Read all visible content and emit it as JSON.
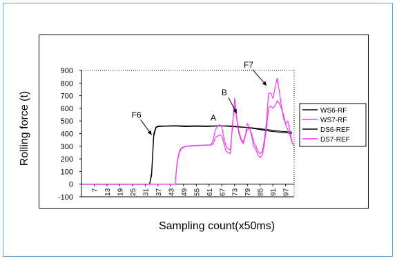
{
  "chart_data": {
    "type": "line",
    "title": "",
    "xlabel": "Sampling count(x50ms)",
    "ylabel": "Rolling force (t)",
    "ylim": [
      -100,
      900
    ],
    "xlim": [
      1,
      101
    ],
    "yticks": [
      -100,
      0,
      100,
      200,
      300,
      400,
      500,
      600,
      700,
      800,
      900
    ],
    "xticks": [
      7,
      13,
      19,
      25,
      31,
      37,
      43,
      49,
      55,
      61,
      67,
      73,
      79,
      85,
      91,
      97
    ],
    "legend_position": "right",
    "series": [
      {
        "name": "WS6-RF",
        "color": "#000000",
        "x": [
          1,
          30,
          33,
          34,
          35,
          36,
          37,
          40,
          45,
          50,
          55,
          60,
          65,
          70,
          75,
          80,
          85,
          90,
          95,
          100
        ],
        "y": [
          0,
          0,
          0,
          90,
          400,
          450,
          460,
          460,
          463,
          460,
          462,
          460,
          462,
          458,
          452,
          448,
          438,
          428,
          418,
          412
        ]
      },
      {
        "name": "WS7-RF",
        "color": "#ff33ff",
        "x": [
          1,
          45,
          46,
          47,
          48,
          49,
          50,
          53,
          57,
          60,
          62,
          63,
          64,
          65,
          66,
          67,
          68,
          69,
          70,
          71,
          72,
          73,
          74,
          75,
          76,
          77,
          78,
          79,
          80,
          81,
          82,
          83,
          84,
          85,
          86,
          87,
          88,
          89,
          90,
          91,
          92,
          93,
          94,
          95,
          96,
          97,
          98,
          99,
          100,
          101
        ],
        "y": [
          0,
          0,
          180,
          260,
          285,
          295,
          300,
          305,
          308,
          310,
          310,
          320,
          370,
          380,
          390,
          380,
          320,
          260,
          250,
          240,
          480,
          620,
          520,
          420,
          360,
          330,
          390,
          430,
          440,
          400,
          330,
          300,
          260,
          240,
          260,
          350,
          500,
          720,
          720,
          680,
          760,
          840,
          740,
          620,
          520,
          480,
          500,
          430,
          330,
          300
        ]
      },
      {
        "name": "DS6-REF",
        "color": "#000000",
        "x": [
          1,
          30,
          33,
          34,
          35,
          36,
          37,
          40,
          45,
          50,
          55,
          60,
          65,
          70,
          75,
          80,
          85,
          90,
          95,
          100
        ],
        "y": [
          0,
          0,
          0,
          70,
          380,
          445,
          455,
          458,
          460,
          455,
          458,
          456,
          460,
          462,
          455,
          445,
          432,
          418,
          410,
          402
        ]
      },
      {
        "name": "DS7-REF",
        "color": "#ff33ff",
        "x": [
          1,
          45,
          46,
          47,
          48,
          49,
          50,
          53,
          57,
          60,
          62,
          63,
          64,
          65,
          66,
          67,
          68,
          69,
          70,
          71,
          72,
          73,
          74,
          75,
          76,
          77,
          78,
          79,
          80,
          81,
          82,
          83,
          84,
          85,
          86,
          87,
          88,
          89,
          90,
          91,
          92,
          93,
          94,
          95,
          96,
          97,
          98,
          99,
          100,
          101
        ],
        "y": [
          0,
          0,
          170,
          250,
          280,
          292,
          298,
          302,
          306,
          308,
          310,
          360,
          430,
          460,
          470,
          450,
          360,
          300,
          280,
          270,
          450,
          680,
          520,
          400,
          350,
          320,
          380,
          480,
          450,
          380,
          300,
          270,
          230,
          210,
          230,
          320,
          450,
          600,
          620,
          600,
          620,
          660,
          640,
          600,
          550,
          470,
          430,
          390,
          330,
          300
        ]
      }
    ],
    "annotations": [
      {
        "label": "F6",
        "x": 34,
        "y": 390
      },
      {
        "label": "A",
        "x": 63,
        "y": 450
      },
      {
        "label": "B",
        "x": 74,
        "y": 560
      },
      {
        "label": "F7",
        "x": 88,
        "y": 780
      }
    ]
  }
}
